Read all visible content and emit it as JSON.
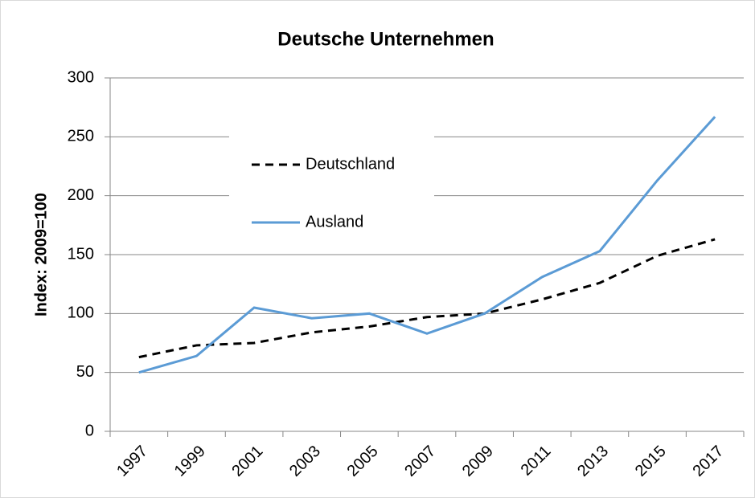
{
  "chart_data": {
    "type": "line",
    "title": "Deutsche Unternehmen",
    "y_label": "Index: 2009=100",
    "categories": [
      "1997",
      "1999",
      "2001",
      "2003",
      "2005",
      "2007",
      "2009",
      "2011",
      "2013",
      "2015",
      "2017"
    ],
    "series": [
      {
        "name": "Deutschland",
        "color": "#000000",
        "dash": true,
        "values": [
          63,
          73,
          75,
          84,
          89,
          97,
          100,
          112,
          126,
          149,
          163
        ]
      },
      {
        "name": "Ausland",
        "color": "#5b9bd5",
        "dash": false,
        "values": [
          50,
          64,
          105,
          96,
          100,
          83,
          100,
          131,
          153,
          213,
          267
        ]
      }
    ],
    "ylim": [
      0,
      300
    ],
    "yticks": [
      0,
      50,
      100,
      150,
      200,
      250,
      300
    ],
    "grid": true,
    "legend": "upper left"
  }
}
